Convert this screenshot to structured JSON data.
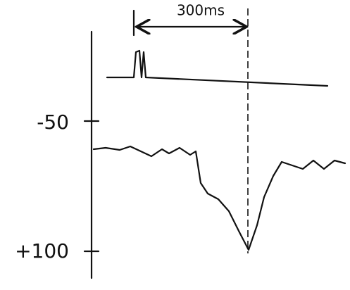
{
  "annotation": "300ms",
  "axis_labels": [
    "-50",
    "+100"
  ]
}
